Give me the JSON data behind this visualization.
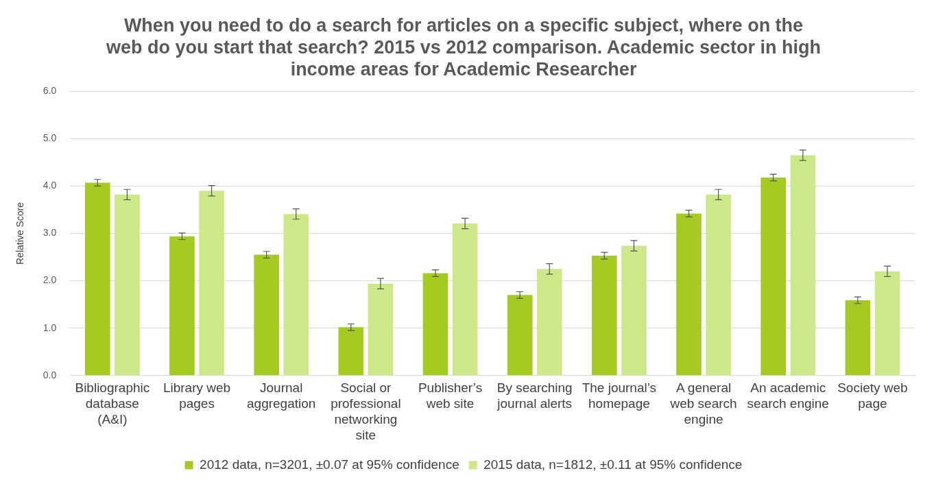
{
  "chart_data": {
    "type": "bar",
    "title": "When you need to do a search for articles on a specific subject, where on the web do you start that search? 2015 vs 2012 comparison. Academic sector in high income areas for Academic Researcher",
    "ylabel": "Relative Score",
    "categories": [
      "Bibliographic database (A&I)",
      "Library web pages",
      "Journal aggregation",
      "Social or professional networking site",
      "Publisher’s web site",
      "By searching journal alerts",
      "The journal’s homepage",
      "A general web search engine",
      "An academic search engine",
      "Society web page"
    ],
    "series": [
      {
        "name": "2012 data, n=3201, ±0.07 at 95% confidence",
        "color": "#a5cb23",
        "values": [
          4.07,
          2.94,
          2.55,
          1.02,
          2.16,
          1.7,
          2.53,
          3.42,
          4.18,
          1.59
        ],
        "errors": [
          0.07,
          0.07,
          0.07,
          0.07,
          0.07,
          0.07,
          0.07,
          0.07,
          0.07,
          0.07
        ]
      },
      {
        "name": "2015 data, n=1812, ±0.11 at 95% confidence",
        "color": "#cce888",
        "values": [
          3.82,
          3.9,
          3.41,
          1.94,
          3.21,
          2.25,
          2.74,
          3.82,
          4.65,
          2.2
        ],
        "errors": [
          0.11,
          0.11,
          0.11,
          0.11,
          0.11,
          0.11,
          0.11,
          0.11,
          0.11,
          0.11
        ]
      }
    ],
    "ylim": [
      0,
      6
    ],
    "yticks": [
      {
        "value": 0,
        "label": "0.0"
      },
      {
        "value": 1,
        "label": "1.0"
      },
      {
        "value": 2,
        "label": "2.0"
      },
      {
        "value": 3,
        "label": "3.0"
      },
      {
        "value": 4,
        "label": "4.0"
      },
      {
        "value": 5,
        "label": "5.0"
      },
      {
        "value": 6,
        "label": "6.0"
      }
    ],
    "grid": "y",
    "legend": "bottom"
  }
}
